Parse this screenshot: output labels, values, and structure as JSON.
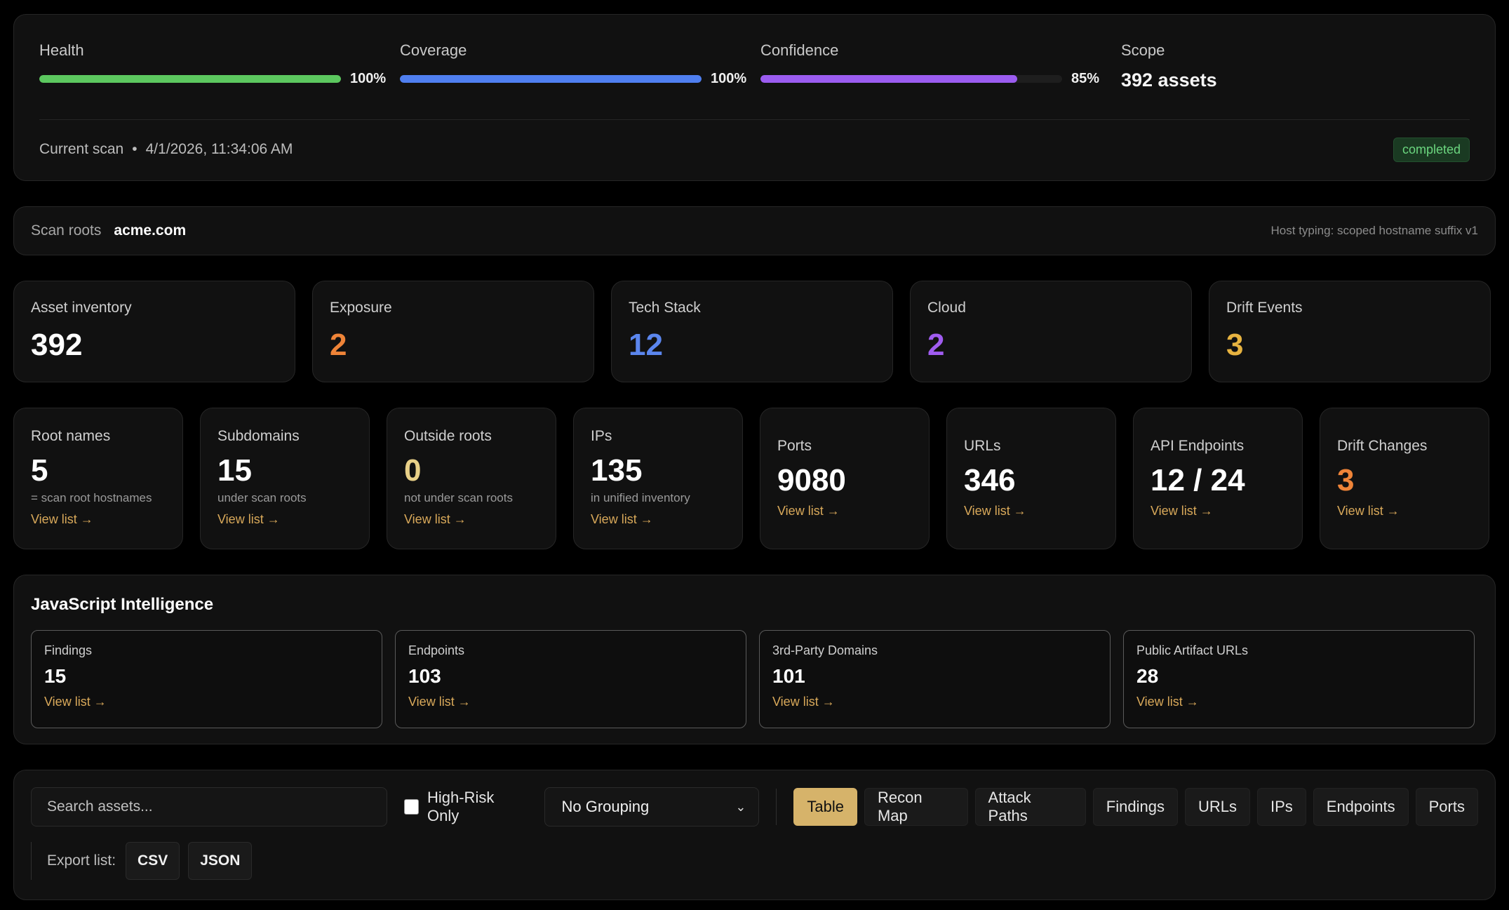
{
  "metrics": {
    "health": {
      "label": "Health",
      "pct_text": "100%",
      "fill": 1.0,
      "color": "#5cc85f"
    },
    "coverage": {
      "label": "Coverage",
      "pct_text": "100%",
      "fill": 1.0,
      "color": "#4f7ff0"
    },
    "confidence": {
      "label": "Confidence",
      "pct_text": "85%",
      "fill": 0.85,
      "color": "#9b5cf0"
    },
    "scope": {
      "label": "Scope",
      "value": "392 assets"
    }
  },
  "scan": {
    "label": "Current scan",
    "separator": "•",
    "timestamp": "4/1/2026, 11:34:06 AM",
    "status": "completed"
  },
  "roots": {
    "label": "Scan roots",
    "value": "acme.com",
    "host_typing": "Host typing: scoped hostname suffix v1"
  },
  "summary": [
    {
      "label": "Asset inventory",
      "value": "392",
      "color": "#ffffff"
    },
    {
      "label": "Exposure",
      "value": "2",
      "color": "#ef8438"
    },
    {
      "label": "Tech Stack",
      "value": "12",
      "color": "#5b86ee"
    },
    {
      "label": "Cloud",
      "value": "2",
      "color": "#a05cf0"
    },
    {
      "label": "Drift Events",
      "value": "3",
      "color": "#e7b340"
    }
  ],
  "inventory": [
    {
      "label": "Root names",
      "value": "5",
      "sub": "= scan root hostnames",
      "link": "View list →",
      "color": "#ffffff"
    },
    {
      "label": "Subdomains",
      "value": "15",
      "sub": "under scan roots",
      "link": "View list →",
      "color": "#ffffff"
    },
    {
      "label": "Outside roots",
      "value": "0",
      "sub": "not under scan roots",
      "link": "View list →",
      "color": "#e8d088"
    },
    {
      "label": "IPs",
      "value": "135",
      "sub": "in unified inventory",
      "link": "View list →",
      "color": "#ffffff"
    },
    {
      "label": "Ports",
      "value": "9080",
      "sub": "",
      "link": "View list →",
      "color": "#ffffff"
    },
    {
      "label": "URLs",
      "value": "346",
      "sub": "",
      "link": "View list →",
      "color": "#ffffff"
    },
    {
      "label": "API Endpoints",
      "value": "12 / 24",
      "sub": "",
      "link": "View list →",
      "color": "#ffffff"
    },
    {
      "label": "Drift Changes",
      "value": "3",
      "sub": "",
      "link": "View list →",
      "color": "#ef8438"
    }
  ],
  "js_intel": {
    "title": "JavaScript Intelligence",
    "cards": [
      {
        "label": "Findings",
        "value": "15",
        "link": "View list →"
      },
      {
        "label": "Endpoints",
        "value": "103",
        "link": "View list →"
      },
      {
        "label": "3rd-Party Domains",
        "value": "101",
        "link": "View list →"
      },
      {
        "label": "Public Artifact URLs",
        "value": "28",
        "link": "View list →"
      }
    ]
  },
  "toolbar": {
    "search_placeholder": "Search assets...",
    "high_risk_label": "High-Risk Only",
    "grouping_value": "No Grouping",
    "views": [
      "Table",
      "Recon Map",
      "Attack Paths",
      "Findings",
      "URLs",
      "IPs",
      "Endpoints",
      "Ports"
    ],
    "active_view": "Table",
    "export_label": "Export list:",
    "export_csv": "CSV",
    "export_json": "JSON"
  }
}
